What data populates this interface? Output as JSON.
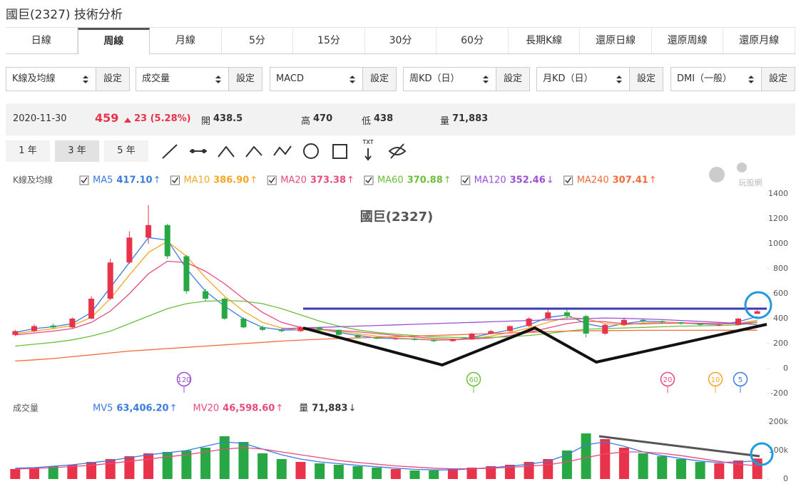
{
  "header": {
    "title": "國巨(2327) 技術分析"
  },
  "tabs": {
    "items": [
      "日線",
      "周線",
      "月線",
      "5分",
      "15分",
      "30分",
      "60分",
      "長期K線",
      "還原日線",
      "還原周線",
      "還原月線"
    ],
    "active": "周線"
  },
  "selectors": [
    {
      "label": "K線及均線",
      "button": "設定"
    },
    {
      "label": "成交量",
      "button": "設定"
    },
    {
      "label": "MACD",
      "button": "設定"
    },
    {
      "label": "周KD（日）",
      "button": "設定"
    },
    {
      "label": "月KD（日）",
      "button": "設定"
    },
    {
      "label": "DMI（一般）",
      "button": "設定"
    }
  ],
  "quote": {
    "date": "2020-11-30",
    "price": "459",
    "change": "23 (5.28%)",
    "fields": [
      {
        "label": "開",
        "value": "438.5"
      },
      {
        "label": "高",
        "value": "470"
      },
      {
        "label": "低",
        "value": "438"
      },
      {
        "label": "量",
        "value": "71,883"
      }
    ]
  },
  "ranges": {
    "items": [
      "1 年",
      "3 年",
      "5 年"
    ],
    "active": "3 年"
  },
  "tools": {
    "txt": "TXT"
  },
  "watermark": "玩股網",
  "chart_data": [
    {
      "type": "candlestick",
      "legend_title": "K線及均線",
      "title": "國巨(2327)",
      "ylim": [
        -200,
        1400
      ],
      "yticks": [
        1400,
        1200,
        1000,
        800,
        600,
        400,
        200,
        0,
        -200
      ],
      "grid": false,
      "up_color": "#e8334a",
      "down_color": "#27a844",
      "open": [
        270,
        300,
        345,
        330,
        400,
        560,
        850,
        1050,
        1150,
        900,
        620,
        560,
        400,
        330,
        310,
        300,
        330,
        310,
        270,
        250,
        240,
        240,
        230,
        220,
        235,
        280,
        300,
        340,
        400,
        450,
        420,
        280,
        350,
        390,
        380,
        370,
        360,
        350,
        350,
        438.5
      ],
      "high": [
        310,
        355,
        360,
        410,
        580,
        880,
        1100,
        1310,
        1160,
        910,
        640,
        570,
        410,
        345,
        320,
        340,
        335,
        315,
        275,
        255,
        250,
        245,
        235,
        240,
        285,
        310,
        345,
        410,
        480,
        490,
        430,
        360,
        410,
        395,
        385,
        375,
        365,
        360,
        405,
        470
      ],
      "low": [
        260,
        295,
        320,
        325,
        395,
        550,
        840,
        1000,
        880,
        600,
        540,
        390,
        325,
        300,
        290,
        295,
        300,
        265,
        245,
        235,
        230,
        225,
        210,
        215,
        230,
        275,
        295,
        335,
        395,
        400,
        250,
        270,
        340,
        370,
        360,
        350,
        345,
        340,
        345,
        438
      ],
      "close": [
        300,
        340,
        330,
        400,
        560,
        850,
        1050,
        1150,
        900,
        620,
        560,
        400,
        330,
        310,
        300,
        330,
        310,
        270,
        250,
        240,
        240,
        230,
        220,
        235,
        280,
        300,
        340,
        400,
        450,
        420,
        280,
        350,
        390,
        380,
        370,
        360,
        350,
        350,
        400,
        459
      ],
      "series": [
        {
          "name": "MA5",
          "value_label": "417.10",
          "trend": "↑",
          "color": "#3b7be0",
          "values": [
            290,
            320,
            335,
            360,
            450,
            650,
            850,
            1050,
            1030,
            800,
            620,
            500,
            400,
            330,
            310,
            310,
            315,
            290,
            265,
            245,
            240,
            235,
            228,
            228,
            250,
            280,
            310,
            350,
            410,
            430,
            360,
            330,
            360,
            380,
            375,
            365,
            358,
            352,
            375,
            417.1
          ]
        },
        {
          "name": "MA10",
          "value_label": "386.90",
          "trend": "↑",
          "color": "#f5a623",
          "values": [
            280,
            300,
            320,
            345,
            410,
            560,
            750,
            930,
            1020,
            900,
            730,
            580,
            460,
            370,
            325,
            310,
            310,
            300,
            280,
            260,
            245,
            238,
            232,
            228,
            238,
            260,
            290,
            325,
            370,
            410,
            400,
            360,
            350,
            365,
            372,
            368,
            362,
            356,
            362,
            386.9
          ]
        },
        {
          "name": "MA20",
          "value_label": "373.38",
          "trend": "↑",
          "color": "#e84a7f",
          "values": [
            270,
            285,
            300,
            320,
            370,
            460,
            600,
            760,
            860,
            850,
            780,
            680,
            560,
            450,
            370,
            330,
            315,
            305,
            295,
            280,
            265,
            252,
            242,
            235,
            236,
            245,
            265,
            290,
            325,
            360,
            380,
            375,
            360,
            358,
            362,
            365,
            363,
            360,
            360,
            373.38
          ]
        },
        {
          "name": "MA60",
          "value_label": "370.88",
          "trend": "↑",
          "color": "#6cbf3a",
          "values": [
            180,
            195,
            210,
            230,
            260,
            300,
            360,
            420,
            480,
            520,
            540,
            545,
            540,
            520,
            480,
            430,
            380,
            340,
            310,
            290,
            275,
            265,
            255,
            250,
            248,
            250,
            255,
            265,
            280,
            300,
            315,
            320,
            325,
            330,
            335,
            340,
            342,
            345,
            350,
            370.88
          ]
        },
        {
          "name": "MA120",
          "value_label": "352.46",
          "trend": "↓",
          "color": "#9b4fd6",
          "values": [
            null,
            null,
            null,
            null,
            null,
            null,
            null,
            null,
            null,
            null,
            null,
            null,
            null,
            null,
            320,
            325,
            330,
            335,
            340,
            345,
            350,
            355,
            360,
            365,
            370,
            375,
            380,
            385,
            390,
            395,
            400,
            405,
            402,
            398,
            392,
            385,
            378,
            370,
            362,
            352.46
          ]
        },
        {
          "name": "MA240",
          "value_label": "307.41",
          "trend": "↑",
          "color": "#f26b3a",
          "values": [
            60,
            70,
            80,
            95,
            110,
            125,
            140,
            150,
            160,
            170,
            180,
            190,
            200,
            210,
            220,
            228,
            235,
            240,
            245,
            250,
            255,
            260,
            265,
            270,
            275,
            280,
            285,
            290,
            295,
            300,
            302,
            304,
            305,
            306,
            306,
            306,
            306,
            307,
            307,
            307.41
          ]
        }
      ],
      "markers": [
        {
          "label": "120",
          "color": "#9b4fd6"
        },
        {
          "label": "60",
          "color": "#6cbf3a"
        },
        {
          "label": "20",
          "color": "#e84a7f"
        },
        {
          "label": "10",
          "color": "#f5a623"
        },
        {
          "label": "5",
          "color": "#3b7be0"
        }
      ]
    },
    {
      "type": "bar",
      "legend_title": "成交量",
      "ylim": [
        0,
        200000
      ],
      "yticks": [
        {
          "value": 0,
          "label": "0"
        },
        {
          "value": 100000,
          "label": "100k"
        },
        {
          "value": 200000,
          "label": "200k"
        }
      ],
      "values": [
        35000,
        40000,
        45000,
        50000,
        60000,
        70000,
        80000,
        90000,
        95000,
        100000,
        110000,
        150000,
        130000,
        90000,
        70000,
        60000,
        55000,
        50000,
        45000,
        40000,
        35000,
        30000,
        30000,
        35000,
        40000,
        45000,
        50000,
        60000,
        70000,
        100000,
        160000,
        140000,
        110000,
        90000,
        80000,
        70000,
        60000,
        55000,
        65000,
        71883
      ],
      "volume_label": {
        "name": "量",
        "value": "71,883",
        "trend": "↓"
      },
      "series": [
        {
          "name": "MV5",
          "value_label": "63,406.20",
          "trend": "↑",
          "color": "#3b7be0",
          "values": [
            38000,
            40000,
            45000,
            50000,
            57000,
            65000,
            75000,
            85000,
            92000,
            100000,
            115000,
            130000,
            125000,
            105000,
            85000,
            70000,
            60000,
            54000,
            48000,
            43000,
            38000,
            34000,
            32000,
            32000,
            36000,
            40000,
            45000,
            52000,
            62000,
            85000,
            120000,
            130000,
            115000,
            95000,
            82000,
            72000,
            63000,
            58000,
            60000,
            63406.2
          ]
        },
        {
          "name": "MV20",
          "value_label": "46,598.60",
          "trend": "↑",
          "color": "#e84a7f",
          "values": [
            35000,
            37000,
            40000,
            44000,
            48000,
            55000,
            62000,
            70000,
            78000,
            85000,
            95000,
            105000,
            110000,
            105000,
            95000,
            85000,
            75000,
            65000,
            58000,
            52000,
            46000,
            42000,
            38000,
            36000,
            36000,
            38000,
            41000,
            45000,
            50000,
            60000,
            75000,
            88000,
            95000,
            95000,
            90000,
            82000,
            72000,
            62000,
            52000,
            46598.6
          ]
        }
      ]
    }
  ]
}
